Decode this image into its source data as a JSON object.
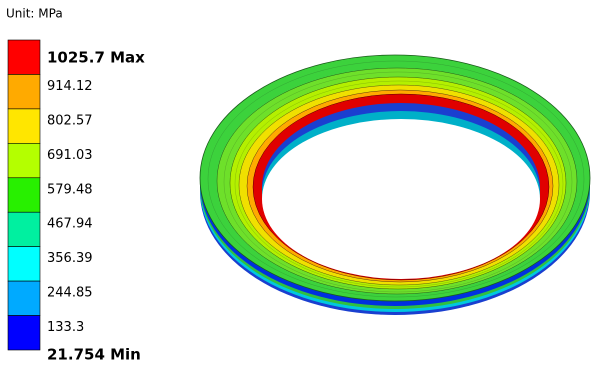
{
  "unit": "Unit: MPa",
  "legend": {
    "labels": [
      "1025.7 Max",
      "914.12",
      "802.57",
      "691.03",
      "579.48",
      "467.94",
      "356.39",
      "244.85",
      "133.3",
      "21.754 Min"
    ],
    "colors": [
      "#ff0000",
      "#ffaa00",
      "#ffe600",
      "#b4ff00",
      "#28f000",
      "#00f0a0",
      "#00ffff",
      "#00aaff",
      "#0000ff"
    ]
  }
}
